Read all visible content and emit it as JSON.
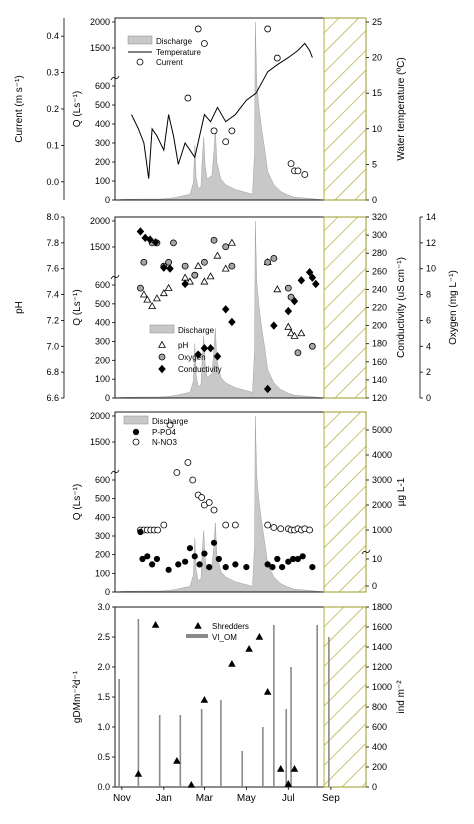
{
  "chart_data": [
    {
      "type": "line",
      "panel": "a",
      "ylabel_left_outer": "Current (m s⁻¹)",
      "ylabel_left": "Q (Ls⁻¹)",
      "ylabel_right": "Water temperature (ºC)",
      "current_ticks": [
        "0.4",
        "0.3",
        "0.2",
        "0.1",
        "0.0"
      ],
      "current_ylim": [
        -0.05,
        0.45
      ],
      "q_ticks_upper": [
        "2000",
        "1500"
      ],
      "q_ticks_lower": [
        "600",
        "500",
        "400",
        "300",
        "200",
        "100",
        "0"
      ],
      "temp_ticks": [
        "25",
        "20",
        "15",
        "10",
        "5",
        "0"
      ],
      "temp_ylim": [
        0,
        25
      ],
      "legend": [
        "Discharge",
        "Temperature",
        "Current"
      ],
      "legend_position": "top-left",
      "temperature": {
        "x": [
          "Nov 15",
          "Nov 25",
          "Dec 3",
          "Dec 10",
          "Dec 15",
          "Dec 22",
          "Jan 1",
          "Jan 8",
          "Jan 15",
          "Jan 22",
          "Feb 1",
          "Feb 8",
          "Feb 15",
          "Feb 22",
          "Mar 1",
          "Mar 10",
          "Mar 20",
          "Apr 1",
          "Apr 15",
          "May 1",
          "May 15",
          "Jun 1",
          "Jun 15",
          "Jul 1",
          "Jul 15",
          "Jul 25",
          "Aug 1",
          "Aug 5"
        ],
        "values": [
          12,
          10,
          8,
          3,
          10,
          9,
          7,
          12,
          9,
          5,
          8,
          7,
          6,
          9,
          12,
          11,
          13,
          11,
          12,
          14,
          15,
          18,
          19,
          20,
          21,
          22,
          21,
          20
        ]
      },
      "current": {
        "x": [
          "Feb 5",
          "Feb 20",
          "Mar 1",
          "Mar 15",
          "Apr 1",
          "Apr 10",
          "Jun 1",
          "Jun 15",
          "Jul 5",
          "Jul 10",
          "Jul 15",
          "Jul 25"
        ],
        "values": [
          0.23,
          0.42,
          0.38,
          0.14,
          0.11,
          0.14,
          0.42,
          0.34,
          0.05,
          0.03,
          0.03,
          0.02
        ]
      }
    },
    {
      "type": "scatter",
      "panel": "b",
      "ylabel_left_outer": "pH",
      "ylabel_left": "Q (Ls⁻¹)",
      "ylabel_right": "Conductivity (uS cm⁻¹)",
      "ylabel_right_outer": "Oxygen (mg L⁻¹)",
      "ph_ticks": [
        "8.0",
        "7.8",
        "7.6",
        "7.4",
        "7.2",
        "7.0",
        "6.8",
        "6.6"
      ],
      "ph_ylim": [
        6.6,
        8.0
      ],
      "q_ticks_upper": [
        "2000",
        "1500"
      ],
      "q_ticks_lower": [
        "600",
        "500",
        "400",
        "300",
        "200",
        "100",
        "0"
      ],
      "cond_ticks": [
        "320",
        "300",
        "280",
        "260",
        "240",
        "220",
        "200",
        "180",
        "160",
        "140",
        "120"
      ],
      "cond_ylim": [
        120,
        320
      ],
      "oxygen_ticks": [
        "14",
        "12",
        "10",
        "8",
        "6",
        "4",
        "2",
        "0"
      ],
      "oxygen_ylim": [
        0,
        14
      ],
      "legend": [
        "Discharge",
        "pH",
        "Oxygen",
        "Conductivity"
      ],
      "legend_position": "bottom-left",
      "ph": {
        "x": [
          "Dec 3",
          "Dec 8",
          "Dec 15",
          "Dec 22",
          "Jan 1",
          "Jan 8",
          "Feb 1",
          "Feb 8",
          "Feb 20",
          "Mar 1",
          "Mar 10",
          "Mar 20",
          "Apr 1",
          "Apr 10",
          "Jun 1",
          "Jun 15",
          "Jul 1",
          "Jul 5",
          "Jul 10",
          "Jul 20"
        ],
        "values": [
          7.4,
          7.36,
          7.31,
          7.37,
          7.41,
          7.45,
          7.53,
          7.5,
          7.62,
          7.5,
          7.54,
          7.7,
          7.6,
          7.8,
          7.65,
          7.44,
          7.15,
          7.1,
          7.08,
          7.1
        ]
      },
      "oxygen": {
        "x": [
          "Nov 28",
          "Dec 3",
          "Dec 15",
          "Dec 22",
          "Jan 1",
          "Jan 8",
          "Jan 15",
          "Feb 1",
          "Feb 15",
          "Mar 1",
          "Mar 15",
          "Apr 1",
          "Apr 10",
          "Jun 1",
          "Jun 10",
          "Jul 1",
          "Jul 5",
          "Jul 15",
          "Aug 5"
        ],
        "values": [
          8.5,
          10.5,
          12,
          12,
          10.2,
          10.5,
          12,
          10.2,
          9.5,
          10.5,
          12.2,
          11.7,
          10.2,
          10.5,
          10.8,
          8.5,
          7.8,
          3.5,
          4.0
        ]
      },
      "conductivity": {
        "x": [
          "Nov 28",
          "Dec 5",
          "Dec 12",
          "Dec 20",
          "Jan 1",
          "Jan 10",
          "Feb 1",
          "Feb 20",
          "Mar 1",
          "Mar 10",
          "Mar 20",
          "Apr 1",
          "Apr 10",
          "Jun 1",
          "Jun 10",
          "Jul 1",
          "Jul 10",
          "Jul 20",
          "Aug 1",
          "Aug 5",
          "Aug 10"
        ],
        "values": [
          304,
          297,
          295,
          292,
          264,
          263,
          246,
          168,
          175,
          175,
          166,
          218,
          204,
          130,
          200,
          216,
          227,
          250,
          259,
          253,
          246
        ]
      }
    },
    {
      "type": "scatter",
      "panel": "c",
      "ylabel_left": "Q (Ls⁻¹)",
      "ylabel_right": "µg L-1",
      "q_ticks_upper": [
        "2000",
        "1500"
      ],
      "q_ticks_lower": [
        "600",
        "500",
        "400",
        "300",
        "200",
        "100",
        "0"
      ],
      "ug_ticks_upper": [
        "5000",
        "4000",
        "3000",
        "2000",
        "1000"
      ],
      "ug_ticks_lower": [
        "10",
        "0"
      ],
      "legend": [
        "Discharge",
        "P-PO4",
        "N-NO3"
      ],
      "legend_position": "top-left",
      "p_po4": {
        "x": [
          "Nov 28",
          "Dec 1",
          "Dec 8",
          "Dec 15",
          "Dec 22",
          "Jan 8",
          "Jan 22",
          "Feb 1",
          "Feb 8",
          "Feb 15",
          "Feb 22",
          "Mar 1",
          "Mar 8",
          "Mar 15",
          "Mar 22",
          "Apr 1",
          "Apr 15",
          "May 1",
          "Jun 1",
          "Jun 8",
          "Jun 15",
          "Jun 22",
          "Jul 1",
          "Jul 8",
          "Jul 15",
          "Jul 22",
          "Aug 5"
        ],
        "values": [
          20,
          10,
          11,
          8,
          10,
          6,
          8,
          9,
          14,
          11,
          8,
          12,
          7,
          16,
          10,
          7,
          8,
          7,
          8,
          7,
          10,
          7,
          9,
          10,
          10,
          11,
          7
        ]
      },
      "n_no3": {
        "x": [
          "Nov 28",
          "Dec 3",
          "Dec 8",
          "Dec 13",
          "Dec 18",
          "Dec 23",
          "Jan 1",
          "Jan 10",
          "Jan 20",
          "Feb 5",
          "Feb 12",
          "Feb 20",
          "Feb 25",
          "Mar 1",
          "Mar 8",
          "Mar 15",
          "Apr 1",
          "Apr 15",
          "Jun 1",
          "Jun 10",
          "Jun 20",
          "Jul 1",
          "Jul 5",
          "Jul 10",
          "Jul 15",
          "Jul 20",
          "Jul 25",
          "Aug 1"
        ],
        "values": [
          1000,
          1000,
          1000,
          1000,
          1000,
          1000,
          1200,
          5200,
          3300,
          3700,
          3000,
          2400,
          2300,
          2000,
          2100,
          1800,
          1200,
          1200,
          1200,
          1100,
          1050,
          1050,
          1000,
          1000,
          1050,
          1000,
          1050,
          1000
        ]
      },
      "discharge": {
        "x": [
          "Nov 1",
          "Jan 1",
          "Feb 10",
          "Feb 20",
          "Mar 5",
          "Mar 15",
          "Apr 1",
          "May 1",
          "May 10",
          "May 15",
          "Jun 1",
          "Jul 1",
          "Aug 15"
        ],
        "values": [
          0,
          10,
          60,
          400,
          80,
          300,
          60,
          20,
          2000,
          600,
          100,
          20,
          0
        ]
      }
    },
    {
      "type": "bar",
      "panel": "d",
      "ylabel_left": "gDMm⁻²d⁻¹",
      "ylabel_right": "ind m⁻²",
      "x_tick_labels": [
        "Nov",
        "Jan",
        "Mar",
        "May",
        "Jul",
        "Sep"
      ],
      "left_ticks": [
        "3.0",
        "2.5",
        "2.0",
        "1.5",
        "1.0",
        "0.5",
        "0.0"
      ],
      "left_ylim": [
        0,
        3.0
      ],
      "right_ticks": [
        "1800",
        "1600",
        "1400",
        "1200",
        "1000",
        "800",
        "600",
        "400",
        "200",
        "0"
      ],
      "right_ylim": [
        0,
        1800
      ],
      "legend": [
        "Shredders",
        "VI_OM"
      ],
      "legend_position": "top-center",
      "vi_om": {
        "x": [
          "Oct 28",
          "Nov 25",
          "Dec 26",
          "Jan 25",
          "Feb 25",
          "Mar 25",
          "Apr 25",
          "May 25",
          "Jun 10",
          "Jun 28",
          "Jul 5",
          "Aug 12",
          "Aug 29"
        ],
        "values": [
          1.8,
          2.8,
          1.2,
          1.2,
          1.3,
          1.45,
          0.6,
          1.0,
          2.7,
          1.3,
          2.0,
          2.7,
          2.5
        ]
      },
      "shredders": {
        "x": [
          "Nov 25",
          "Dec 20",
          "Jan 20",
          "Feb 10",
          "Mar 1",
          "Apr 10",
          "May 5",
          "May 20",
          "Jun 1",
          "Jun 20",
          "Jul 1",
          "Jul 10"
        ],
        "values": [
          130,
          1620,
          260,
          20,
          870,
          1230,
          1380,
          1500,
          950,
          180,
          30,
          180
        ]
      }
    }
  ]
}
